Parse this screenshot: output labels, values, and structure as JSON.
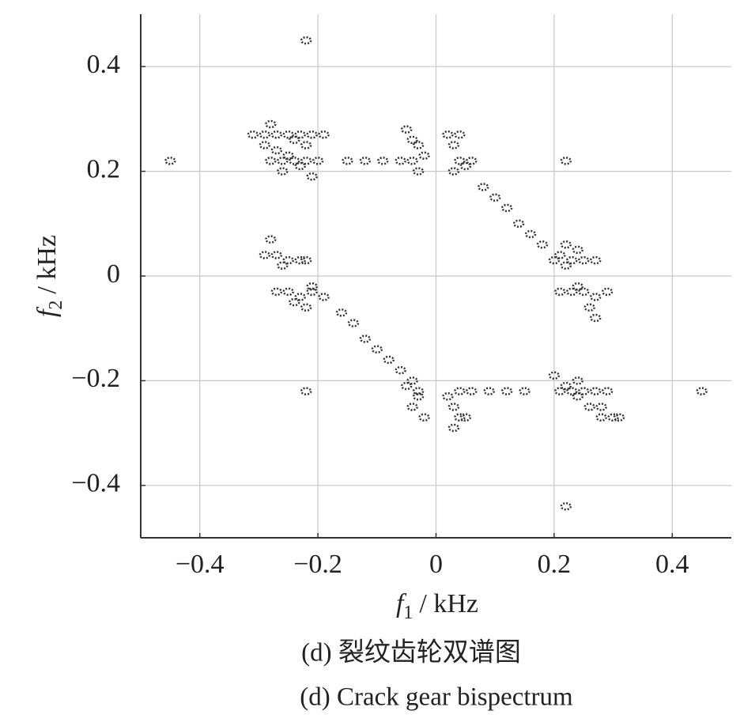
{
  "chart_data": {
    "type": "scatter",
    "xlabel_symbol": "f",
    "xlabel_subscript": "1",
    "xlabel_unit": "/ kHz",
    "ylabel_symbol": "f",
    "ylabel_subscript": "2",
    "ylabel_unit": "/ kHz",
    "caption_cn": "(d) 裂纹齿轮双谱图",
    "caption_en": "(d) Crack gear bispectrum",
    "xlim": [
      -0.5,
      0.5
    ],
    "ylim": [
      -0.5,
      0.5
    ],
    "xticks": [
      {
        "value": -0.4,
        "label": "−0.4"
      },
      {
        "value": -0.2,
        "label": "−0.2"
      },
      0,
      0.2,
      0.4
    ],
    "yticks": [
      {
        "value": -0.4,
        "label": "−0.4"
      },
      {
        "value": -0.2,
        "label": "−0.2"
      },
      0,
      0.2,
      0.4
    ],
    "grid": true,
    "color": "#333333",
    "x": [
      -0.31,
      -0.29,
      -0.27,
      -0.25,
      -0.23,
      -0.21,
      -0.19,
      -0.28,
      -0.26,
      -0.24,
      -0.22,
      -0.2,
      -0.29,
      -0.27,
      -0.25,
      -0.23,
      -0.21,
      -0.22,
      -0.26,
      -0.24,
      -0.28,
      -0.15,
      -0.12,
      -0.09,
      -0.06,
      -0.05,
      -0.04,
      -0.03,
      -0.04,
      -0.02,
      -0.03,
      0.02,
      0.03,
      0.04,
      0.03,
      0.05,
      0.04,
      0.06,
      0.08,
      0.1,
      0.12,
      0.14,
      0.16,
      0.18,
      0.2,
      0.21,
      0.22,
      0.23,
      0.25,
      0.27,
      0.22,
      0.24,
      0.21,
      0.23,
      0.25,
      0.27,
      0.29,
      0.26,
      0.27,
      0.24,
      0.2,
      0.22,
      0.24,
      0.26,
      0.28,
      0.3,
      0.31,
      0.29,
      0.27,
      0.25,
      0.23,
      0.21,
      0.24,
      0.28,
      0.06,
      0.09,
      0.12,
      0.15,
      -0.05,
      -0.04,
      -0.03,
      -0.04,
      -0.02,
      -0.03,
      0.02,
      0.03,
      0.04,
      0.03,
      0.05,
      0.04,
      -0.16,
      -0.14,
      -0.12,
      -0.1,
      -0.08,
      -0.06,
      -0.29,
      -0.27,
      -0.25,
      -0.23,
      -0.28,
      -0.26,
      -0.22,
      -0.27,
      -0.25,
      -0.23,
      -0.21,
      -0.22,
      -0.19,
      -0.24,
      -0.21,
      -0.22,
      -0.45,
      0.22,
      -0.22,
      0.45,
      0.22
    ],
    "y": [
      0.27,
      0.27,
      0.27,
      0.27,
      0.27,
      0.27,
      0.27,
      0.22,
      0.22,
      0.22,
      0.22,
      0.22,
      0.25,
      0.24,
      0.23,
      0.21,
      0.19,
      0.25,
      0.2,
      0.26,
      0.29,
      0.22,
      0.22,
      0.22,
      0.22,
      0.28,
      0.26,
      0.25,
      0.22,
      0.23,
      0.2,
      0.27,
      0.25,
      0.22,
      0.2,
      0.21,
      0.27,
      0.22,
      0.17,
      0.15,
      0.13,
      0.1,
      0.08,
      0.06,
      0.03,
      0.04,
      0.06,
      0.03,
      0.03,
      0.03,
      0.02,
      0.05,
      -0.03,
      -0.03,
      -0.03,
      -0.04,
      -0.03,
      -0.06,
      -0.08,
      -0.02,
      -0.19,
      -0.21,
      -0.23,
      -0.25,
      -0.27,
      -0.27,
      -0.27,
      -0.22,
      -0.22,
      -0.22,
      -0.22,
      -0.22,
      -0.2,
      -0.25,
      -0.22,
      -0.22,
      -0.22,
      -0.22,
      -0.21,
      -0.2,
      -0.22,
      -0.25,
      -0.27,
      -0.23,
      -0.23,
      -0.25,
      -0.27,
      -0.29,
      -0.27,
      -0.22,
      -0.07,
      -0.09,
      -0.12,
      -0.14,
      -0.16,
      -0.18,
      0.04,
      0.04,
      0.03,
      0.03,
      0.07,
      0.02,
      0.03,
      -0.03,
      -0.03,
      -0.04,
      -0.03,
      -0.06,
      -0.04,
      -0.05,
      -0.02,
      0.45,
      0.22,
      0.22,
      -0.22,
      -0.22,
      -0.44
    ]
  }
}
